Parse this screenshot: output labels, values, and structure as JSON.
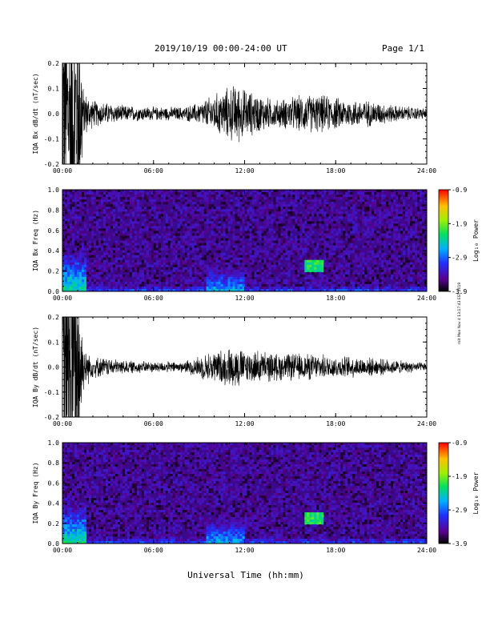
{
  "header": {
    "title": "2019/10/19  00:00-24:00 UT",
    "page": "Page 1/1"
  },
  "footer_note": "mit  Mon  Nov  4  13:17:43  EST  2019",
  "chart_data": [
    {
      "type": "line",
      "ylabel": "IQA Bx dB/dt (nT/sec)",
      "ylim": [
        -0.2,
        0.2
      ],
      "yticks": [
        "0.2",
        "0.1",
        "0.0",
        "-0.1",
        "-0.2"
      ],
      "xlim_hours": [
        0,
        24
      ],
      "xticks": [
        "00:00",
        "06:00",
        "12:00",
        "18:00",
        "24:00"
      ],
      "series": [
        {
          "amplitude_envelope": {
            "hours": [
              0,
              1,
              1.4,
              2,
              4,
              6,
              8,
              9,
              10,
              11,
              11.5,
              12,
              13,
              14,
              15,
              16,
              17,
              18,
              19,
              20,
              21,
              22,
              23,
              24
            ],
            "half_range": [
              0.2,
              0.2,
              0.09,
              0.05,
              0.03,
              0.025,
              0.025,
              0.04,
              0.07,
              0.1,
              0.11,
              0.09,
              0.07,
              0.05,
              0.06,
              0.07,
              0.07,
              0.06,
              0.05,
              0.05,
              0.04,
              0.03,
              0.025,
              0.02
            ]
          }
        }
      ]
    },
    {
      "type": "heatmap",
      "ylabel": "IQA Bx Freq (Hz)",
      "ylim": [
        0.0,
        1.0
      ],
      "yticks": [
        "1.0",
        "0.8",
        "0.6",
        "0.4",
        "0.2",
        "0.0"
      ],
      "xlim_hours": [
        0,
        24
      ],
      "xticks": [
        "00:00",
        "06:00",
        "12:00",
        "18:00",
        "24:00"
      ],
      "colorbar": {
        "label": "Log₁₀ Power",
        "ticks": [
          "-0.9",
          "-1.9",
          "-2.9",
          "-3.9"
        ],
        "range": [
          -3.9,
          -0.9
        ]
      },
      "features": [
        {
          "hours": [
            0.0,
            1.5
          ],
          "freq_max": 0.35,
          "level": -2.3
        },
        {
          "hours": [
            9.5,
            12.0
          ],
          "freq_max": 0.25,
          "level": -2.6
        },
        {
          "hours": [
            16.0,
            17.2
          ],
          "freq_range": [
            0.18,
            0.32
          ],
          "level": -2.2
        }
      ]
    },
    {
      "type": "line",
      "ylabel": "IQA By dB/dt (nT/sec)",
      "ylim": [
        -0.2,
        0.2
      ],
      "yticks": [
        "0.2",
        "0.1",
        "0.0",
        "-0.1",
        "-0.2"
      ],
      "xlim_hours": [
        0,
        24
      ],
      "xticks": [
        "00:00",
        "06:00",
        "12:00",
        "18:00",
        "24:00"
      ],
      "series": [
        {
          "amplitude_envelope": {
            "hours": [
              0,
              1,
              1.4,
              2,
              4,
              6,
              8,
              9,
              10,
              11,
              11.5,
              12,
              13,
              14,
              15,
              16,
              17,
              18,
              19,
              20,
              21,
              22,
              23,
              24
            ],
            "half_range": [
              0.2,
              0.2,
              0.08,
              0.04,
              0.025,
              0.02,
              0.02,
              0.04,
              0.06,
              0.07,
              0.08,
              0.06,
              0.06,
              0.05,
              0.05,
              0.05,
              0.045,
              0.04,
              0.04,
              0.035,
              0.03,
              0.025,
              0.02,
              0.015
            ]
          }
        }
      ]
    },
    {
      "type": "heatmap",
      "ylabel": "IQA By Freq (Hz)",
      "ylim": [
        0.0,
        1.0
      ],
      "yticks": [
        "1.0",
        "0.8",
        "0.6",
        "0.4",
        "0.2",
        "0.0"
      ],
      "xlim_hours": [
        0,
        24
      ],
      "xticks": [
        "00:00",
        "06:00",
        "12:00",
        "18:00",
        "24:00"
      ],
      "colorbar": {
        "label": "Log₁₀ Power",
        "ticks": [
          "-0.9",
          "-1.9",
          "-2.9",
          "-3.9"
        ],
        "range": [
          -3.9,
          -0.9
        ]
      },
      "features": [
        {
          "hours": [
            0.0,
            1.5
          ],
          "freq_max": 0.35,
          "level": -2.3
        },
        {
          "hours": [
            9.5,
            12.0
          ],
          "freq_max": 0.25,
          "level": -2.6
        },
        {
          "hours": [
            16.0,
            17.2
          ],
          "freq_range": [
            0.18,
            0.32
          ],
          "level": -2.2
        }
      ]
    }
  ],
  "xlabel": "Universal Time (hh:mm)"
}
